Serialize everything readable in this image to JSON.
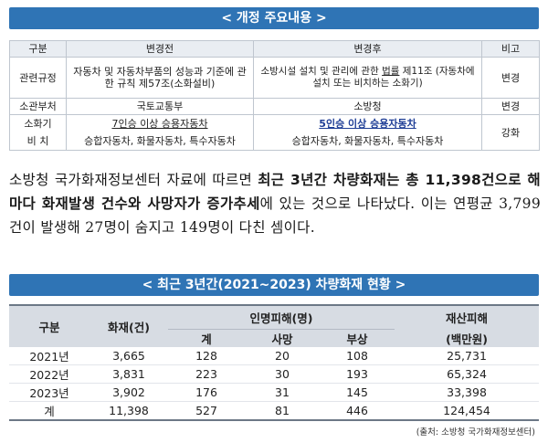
{
  "banner1": "< 개정 주요내용 >",
  "table1": {
    "headers": [
      "구분",
      "변경전",
      "변경후",
      "비고"
    ],
    "row1": {
      "label": "관련규정",
      "before": "자동차 및 자동차부품의 성능과 기준에 관한 규칙 제57조(소화설비)",
      "after_prefix": "소방시설 설치 및 관리에 관한 ",
      "after_underline": "법률",
      "after_rest": " 제11조 (자동차에 설치 또는 비치하는 소화기)",
      "note": "변경"
    },
    "row2": {
      "label": "소관부처",
      "before": "국토교통부",
      "after": "소방청",
      "note": "변경"
    },
    "row3": {
      "label1": "소화기",
      "label2": "비 치",
      "before_top": "7인승 이상 승용자동차",
      "after_top": "5인승 이상 승용자동차",
      "before_bottom": "승합자동차, 화물자동차, 특수자동차",
      "after_bottom": "승합자동차, 화물자동차, 특수자동차",
      "note": "강화"
    }
  },
  "paragraph": {
    "p1": "소방청 국가화재정보센터 자료에 따르면 ",
    "bold": "최근 3년간 차량화재는 총 11,398건으로 해마다 화재발생 건수와 사망자가 증가추세",
    "p2": "에 있는 것으로 나타났다. 이는 연평균 3,799건이 발생해 27명이 숨지고 149명이 다친 셈이다."
  },
  "banner2": "< 최근 3년간(2021~2023) 차량화재 현황 >",
  "table2": {
    "h_category": "구분",
    "h_fires": "화재(건)",
    "h_casualties": "인명피해(명)",
    "h_property": "재산피해",
    "h_property_unit": "(백만원)",
    "h_total": "계",
    "h_deaths": "사망",
    "h_injuries": "부상",
    "rows": [
      {
        "year": "2021년",
        "fires": "3,665",
        "total": "128",
        "deaths": "20",
        "injuries": "108",
        "property": "25,731"
      },
      {
        "year": "2022년",
        "fires": "3,831",
        "total": "223",
        "deaths": "30",
        "injuries": "193",
        "property": "65,324"
      },
      {
        "year": "2023년",
        "fires": "3,902",
        "total": "176",
        "deaths": "31",
        "injuries": "145",
        "property": "33,398"
      }
    ],
    "sum": {
      "year": "계",
      "fires": "11,398",
      "total": "527",
      "deaths": "81",
      "injuries": "446",
      "property": "124,454"
    }
  },
  "source": "(출처: 소방청 국가화재정보센터)"
}
